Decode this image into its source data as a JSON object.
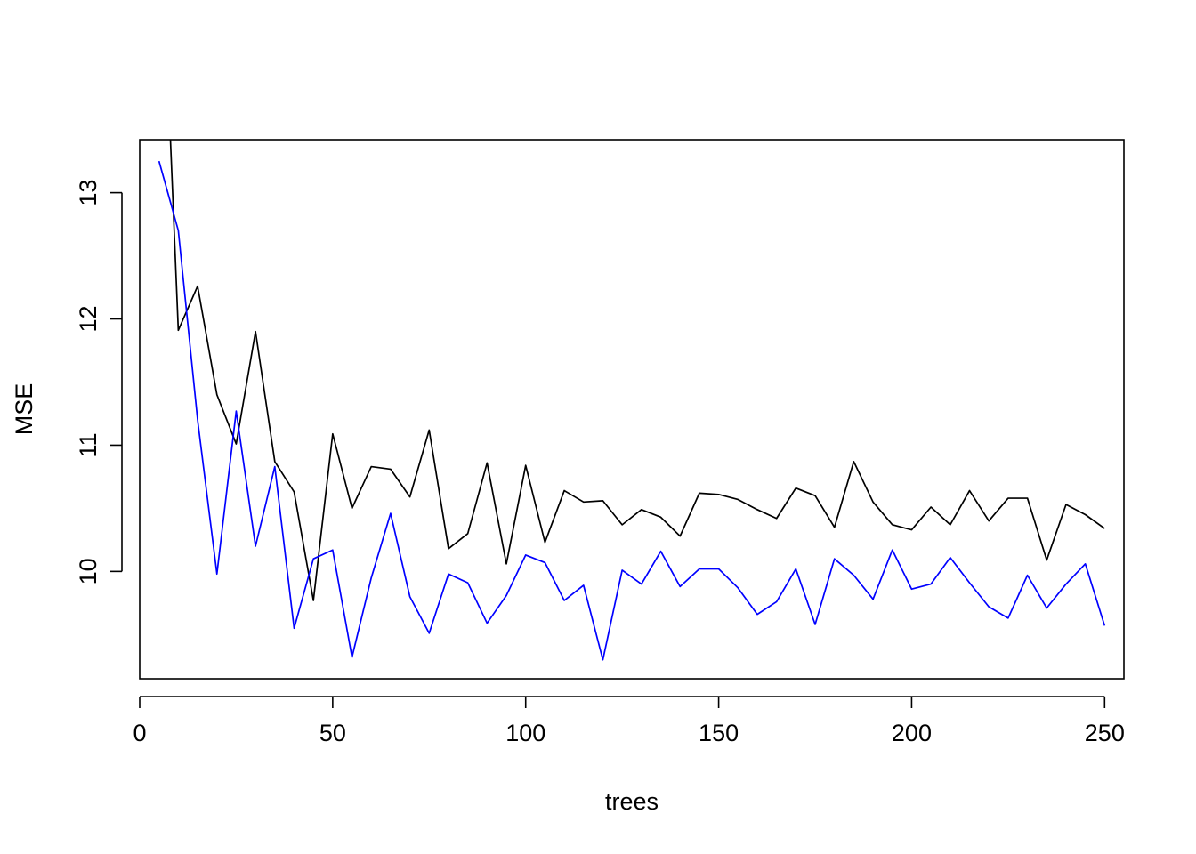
{
  "chart_data": {
    "type": "line",
    "title": "",
    "xlabel": "trees",
    "ylabel": "MSE",
    "xlim": [
      0,
      255
    ],
    "ylim": [
      9.15,
      13.42
    ],
    "xticks": [
      0,
      50,
      100,
      150,
      200,
      250
    ],
    "yticks": [
      10,
      11,
      12,
      13
    ],
    "grid": false,
    "legend": "none",
    "x": [
      5,
      10,
      15,
      20,
      25,
      30,
      35,
      40,
      45,
      50,
      55,
      60,
      65,
      70,
      75,
      80,
      85,
      90,
      95,
      100,
      105,
      110,
      115,
      120,
      125,
      130,
      135,
      140,
      145,
      150,
      155,
      160,
      165,
      170,
      175,
      180,
      185,
      190,
      195,
      200,
      205,
      210,
      215,
      220,
      225,
      230,
      235,
      240,
      245,
      250
    ],
    "series": [
      {
        "color": "#000000",
        "values": [
          15.6,
          11.91,
          12.26,
          11.4,
          11.01,
          11.9,
          10.87,
          10.63,
          9.77,
          11.09,
          10.5,
          10.83,
          10.81,
          10.59,
          11.12,
          10.18,
          10.3,
          10.86,
          10.06,
          10.84,
          10.23,
          10.64,
          10.55,
          10.56,
          10.37,
          10.49,
          10.43,
          10.28,
          10.62,
          10.61,
          10.57,
          10.49,
          10.42,
          10.66,
          10.6,
          10.35,
          10.87,
          10.55,
          10.37,
          10.33,
          10.51,
          10.37,
          10.64,
          10.4,
          10.58,
          10.58,
          10.09,
          10.53,
          10.45,
          10.34
        ]
      },
      {
        "color": "#0000ff",
        "values": [
          13.25,
          12.7,
          11.2,
          9.98,
          11.27,
          10.2,
          10.83,
          9.55,
          10.1,
          10.17,
          9.32,
          9.95,
          10.46,
          9.8,
          9.51,
          9.98,
          9.91,
          9.59,
          9.81,
          10.13,
          10.07,
          9.77,
          9.89,
          9.3,
          10.01,
          9.9,
          10.16,
          9.88,
          10.02,
          10.02,
          9.87,
          9.66,
          9.76,
          10.02,
          9.58,
          10.1,
          9.97,
          9.78,
          10.17,
          9.86,
          9.9,
          10.11,
          9.91,
          9.72,
          9.63,
          9.97,
          9.71,
          9.9,
          10.06,
          9.57
        ]
      }
    ]
  }
}
